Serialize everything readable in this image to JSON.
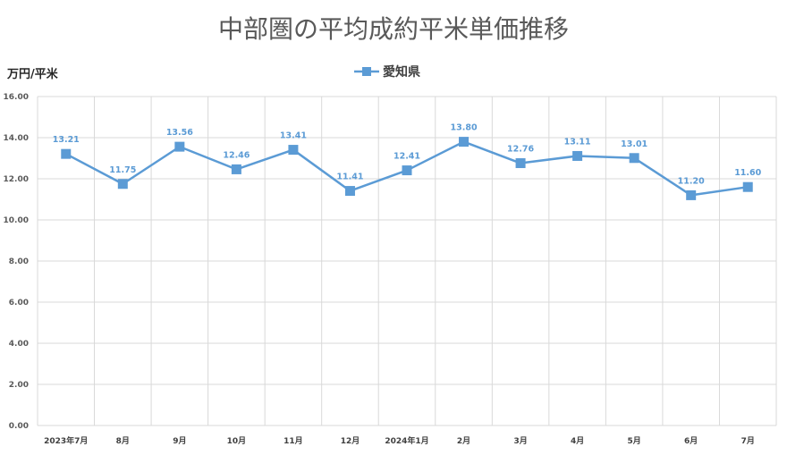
{
  "chart_data": {
    "type": "line",
    "title": "中部圏の平均成約平米単価推移",
    "ylabel": "万円/平米",
    "xlabel": "",
    "categories": [
      "2023年7月",
      "8月",
      "9月",
      "10月",
      "11月",
      "12月",
      "2024年1月",
      "2月",
      "3月",
      "4月",
      "5月",
      "6月",
      "7月"
    ],
    "series": [
      {
        "name": "愛知県",
        "values": [
          13.21,
          11.75,
          13.56,
          12.46,
          13.41,
          11.41,
          12.41,
          13.8,
          12.76,
          13.11,
          13.01,
          11.2,
          11.6
        ],
        "labels": [
          "13.21",
          "11.75",
          "13.56",
          "12.46",
          "13.41",
          "11.41",
          "12.41",
          "13.80",
          "12.76",
          "13.11",
          "13.01",
          "11.20",
          "11.60"
        ]
      }
    ],
    "ylim": [
      0,
      16
    ],
    "yticks": [
      "0.00",
      "2.00",
      "4.00",
      "6.00",
      "8.00",
      "10.00",
      "12.00",
      "14.00",
      "16.00"
    ],
    "grid": true,
    "legend": "top-center",
    "colors": {
      "series": "#5b9bd5",
      "grid": "#d9d9d9",
      "label": "#5b9bd5"
    }
  }
}
